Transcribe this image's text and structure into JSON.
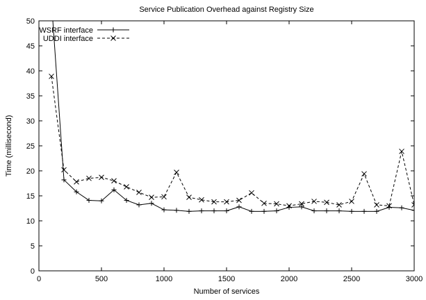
{
  "chart_data": {
    "type": "line",
    "title": "Service Publication Overhead against Registry Size",
    "xlabel": "Number of services",
    "ylabel": "Time (millisecond)",
    "xlim": [
      0,
      3000
    ],
    "ylim": [
      0,
      50
    ],
    "x_ticks": [
      0,
      500,
      1000,
      1500,
      2000,
      2500,
      3000
    ],
    "y_ticks": [
      0,
      5,
      10,
      15,
      20,
      25,
      30,
      35,
      40,
      45,
      50
    ],
    "grid": false,
    "legend_position": "top-left",
    "x": [
      100,
      200,
      300,
      400,
      500,
      600,
      700,
      800,
      900,
      1000,
      1100,
      1200,
      1300,
      1400,
      1500,
      1600,
      1700,
      1800,
      1900,
      2000,
      2100,
      2200,
      2300,
      2400,
      2500,
      2600,
      2700,
      2800,
      2900,
      3000
    ],
    "series": [
      {
        "name": "WSRF interface",
        "line_style": "solid",
        "marker": "plus",
        "color": "#000000",
        "values": [
          54,
          18.2,
          15.8,
          14.1,
          14.0,
          16.2,
          14.1,
          13.2,
          13.5,
          12.2,
          12.1,
          11.9,
          12.0,
          12.0,
          12.0,
          12.8,
          11.9,
          11.9,
          12.0,
          12.7,
          12.8,
          12.0,
          12.0,
          12.0,
          11.9,
          11.9,
          11.9,
          12.7,
          12.6,
          12.1
        ]
      },
      {
        "name": "UDDI interface",
        "line_style": "dashed",
        "marker": "cross",
        "color": "#000000",
        "values": [
          38.9,
          20.2,
          17.8,
          18.5,
          18.7,
          18.0,
          16.8,
          15.7,
          14.7,
          14.8,
          19.7,
          14.7,
          14.2,
          13.8,
          13.8,
          14.1,
          15.6,
          13.5,
          13.4,
          13.0,
          13.4,
          13.9,
          13.7,
          13.2,
          13.9,
          19.4,
          13.2,
          13.0,
          23.9,
          13.2
        ]
      }
    ]
  }
}
